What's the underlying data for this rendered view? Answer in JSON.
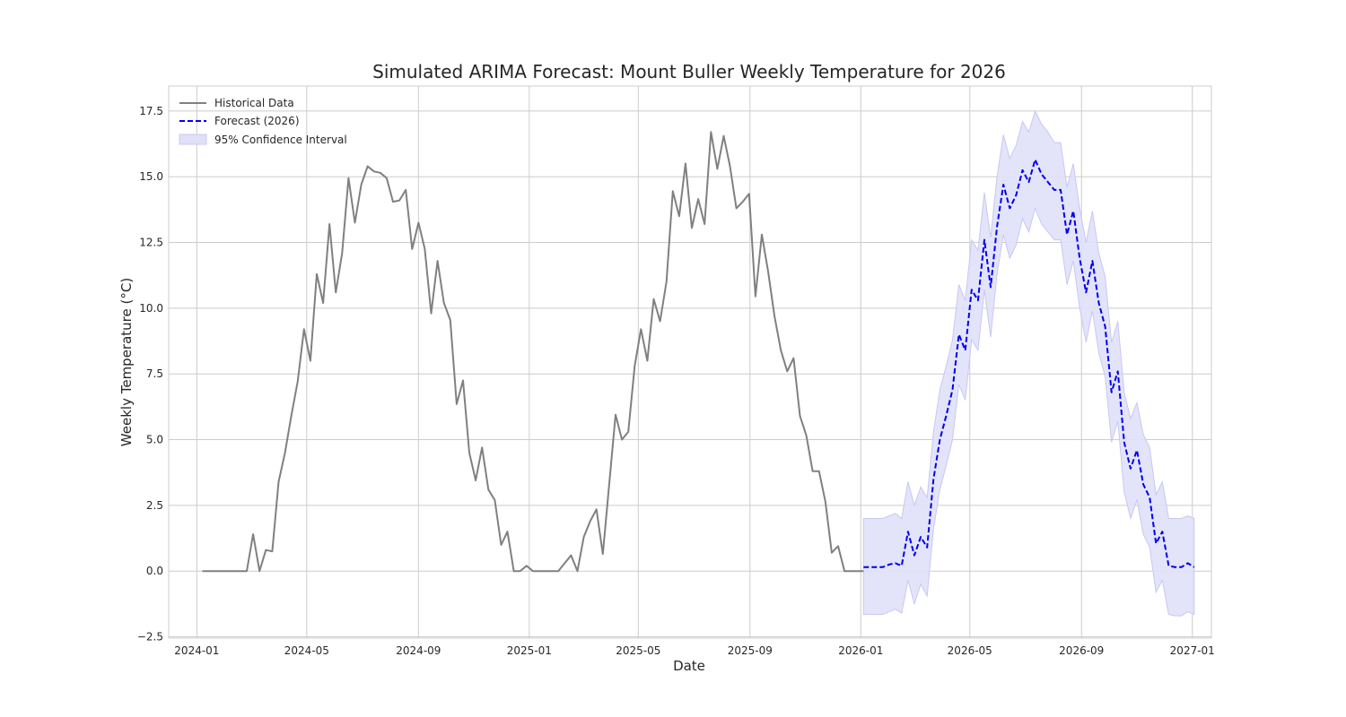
{
  "chart_data": {
    "type": "line",
    "title": "Simulated ARIMA Forecast: Mount Buller Weekly Temperature for 2026",
    "xlabel": "Date",
    "ylabel": "Weekly Temperature (°C)",
    "x_ticks": [
      "2024-01",
      "2024-05",
      "2024-09",
      "2025-01",
      "2025-05",
      "2025-09",
      "2026-01",
      "2026-05",
      "2026-09",
      "2027-01"
    ],
    "y_ticks": [
      "−2.5",
      "0.0",
      "2.5",
      "5.0",
      "7.5",
      "10.0",
      "12.5",
      "15.0",
      "17.5"
    ],
    "xlim": [
      "2023-12-01",
      "2027-01-22"
    ],
    "ylim": [
      -2.55,
      18.45
    ],
    "grid": true,
    "legend_placement": "top-left",
    "colors": {
      "historical": "#808080",
      "forecast": "#0000ee",
      "ci_fill": "#e0e0fa",
      "ci_edge": "#c8c8f2",
      "grid": "#cccccc",
      "frame": "#cccccc"
    },
    "series": [
      {
        "name": "Historical Data",
        "start_date": "2024-01-07",
        "interval_days": 7,
        "values": [
          0,
          0,
          0,
          0,
          0,
          0,
          0,
          0,
          1.4,
          0,
          0.8,
          0.75,
          3.4,
          4.5,
          5.9,
          7.2,
          9.2,
          8.0,
          11.3,
          10.2,
          13.2,
          10.6,
          12.1,
          14.95,
          13.25,
          14.7,
          15.4,
          15.2,
          15.15,
          14.95,
          14.05,
          14.1,
          14.5,
          12.25,
          13.25,
          12.25,
          9.8,
          11.8,
          10.2,
          9.55,
          6.35,
          7.25,
          4.5,
          3.45,
          4.7,
          3.1,
          2.7,
          1.0,
          1.5,
          0.0,
          0.0,
          0.2,
          0,
          0,
          0,
          0,
          0,
          0.3,
          0.6,
          0,
          1.3,
          1.9,
          2.35,
          0.65,
          3.3,
          5.95,
          5.0,
          5.3,
          7.8,
          9.2,
          8.0,
          10.35,
          9.5,
          11.0,
          14.45,
          13.5,
          15.5,
          13.05,
          14.15,
          13.2,
          16.7,
          15.3,
          16.55,
          15.4,
          13.8,
          14.05,
          14.35,
          10.45,
          12.8,
          11.4,
          9.7,
          8.4,
          7.6,
          8.1,
          5.9,
          5.15,
          3.8,
          3.8,
          2.65,
          0.7,
          0.95,
          0.0,
          0,
          0,
          0
        ]
      },
      {
        "name": "Forecast (2026)",
        "start_date": "2026-01-04",
        "interval_days": 7,
        "values": [
          0.15,
          0.15,
          0.15,
          0.15,
          0.25,
          0.3,
          0.2,
          1.5,
          0.6,
          1.3,
          0.9,
          3.5,
          5.0,
          5.9,
          6.9,
          9.0,
          8.4,
          10.7,
          10.3,
          12.6,
          10.8,
          13.1,
          14.7,
          13.8,
          14.3,
          15.25,
          14.8,
          15.65,
          15.1,
          14.8,
          14.5,
          14.5,
          12.8,
          13.7,
          11.9,
          10.6,
          11.8,
          10.2,
          9.3,
          6.8,
          7.6,
          4.9,
          3.9,
          4.6,
          3.3,
          2.8,
          1.05,
          1.5,
          0.2,
          0.15,
          0.15,
          0.3,
          0.15
        ]
      }
    ],
    "confidence_interval": {
      "name": "95% Confidence Interval",
      "start_date": "2026-01-04",
      "interval_days": 7,
      "upper": [
        2.0,
        2.0,
        2.0,
        2.0,
        2.1,
        2.2,
        2.0,
        3.4,
        2.5,
        3.2,
        2.8,
        5.3,
        6.9,
        7.8,
        8.8,
        10.9,
        10.3,
        12.6,
        12.2,
        14.4,
        12.7,
        15.0,
        16.6,
        15.7,
        16.2,
        17.1,
        16.7,
        17.5,
        17.0,
        16.7,
        16.3,
        16.3,
        14.6,
        15.5,
        13.8,
        12.5,
        13.7,
        12.1,
        11.2,
        8.7,
        9.5,
        6.8,
        5.8,
        6.4,
        5.2,
        4.7,
        2.9,
        3.4,
        2.0,
        2.0,
        2.0,
        2.1,
        2.0
      ],
      "lower": [
        -1.65,
        -1.65,
        -1.65,
        -1.65,
        -1.55,
        -1.45,
        -1.6,
        -0.35,
        -1.25,
        -0.5,
        -0.95,
        1.6,
        3.1,
        4.0,
        5.0,
        7.1,
        6.5,
        8.8,
        8.4,
        10.7,
        8.9,
        11.3,
        12.8,
        11.9,
        12.4,
        13.4,
        12.9,
        13.8,
        13.2,
        12.9,
        12.6,
        12.6,
        10.9,
        11.8,
        10.0,
        8.7,
        9.9,
        8.3,
        7.4,
        4.9,
        5.7,
        3.0,
        2.0,
        2.7,
        1.4,
        0.9,
        -0.8,
        -0.35,
        -1.65,
        -1.7,
        -1.7,
        -1.55,
        -1.65
      ]
    }
  }
}
